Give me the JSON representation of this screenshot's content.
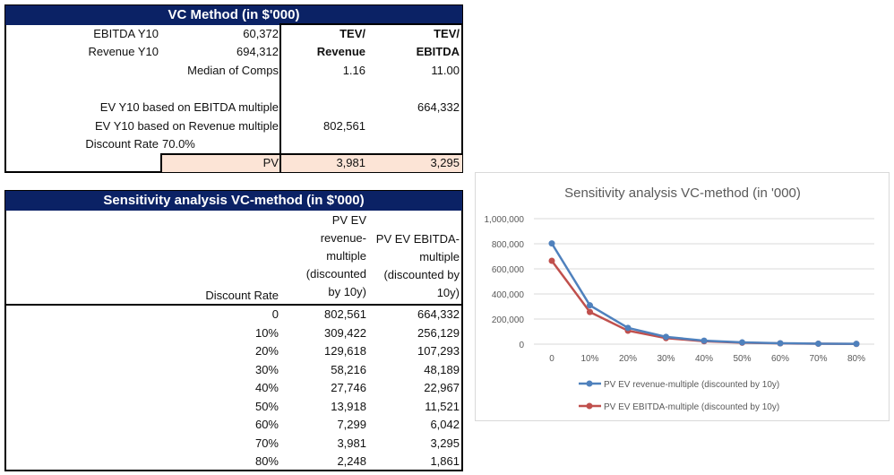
{
  "vc": {
    "title": "VC Method (in $'000)",
    "ebitda_label": "EBITDA Y10",
    "ebitda_value": "60,372",
    "revenue_label": "Revenue Y10",
    "revenue_value": "694,312",
    "col1_line1": "TEV/",
    "col1_line2": "Revenue",
    "col2_line1": "TEV/",
    "col2_line2": "EBITDA",
    "median_label": "Median of Comps",
    "median_rev": "1.16",
    "median_ebitda": "11.00",
    "ev_ebitda_label": "EV Y10 based on EBITDA multiple",
    "ev_ebitda_value": "664,332",
    "ev_rev_label": "EV Y10 based on Revenue multiple",
    "ev_rev_value": "802,561",
    "discount_label": "Discount Rate",
    "discount_value": "70.0%",
    "pv_label": "PV",
    "pv_rev": "3,981",
    "pv_ebitda": "3,295"
  },
  "sens": {
    "title": "Sensitivity analysis VC-method (in $'000)",
    "col0_header": "Discount Rate",
    "col1_header": [
      "PV EV",
      "revenue-",
      "multiple",
      "(discounted",
      "by 10y)"
    ],
    "col2_header": [
      "PV EV EBITDA-",
      "multiple",
      "(discounted by",
      "10y)"
    ],
    "rows": [
      [
        "0",
        "802,561",
        "664,332"
      ],
      [
        "10%",
        "309,422",
        "256,129"
      ],
      [
        "20%",
        "129,618",
        "107,293"
      ],
      [
        "30%",
        "58,216",
        "48,189"
      ],
      [
        "40%",
        "27,746",
        "22,967"
      ],
      [
        "50%",
        "13,918",
        "11,521"
      ],
      [
        "60%",
        "7,299",
        "6,042"
      ],
      [
        "70%",
        "3,981",
        "3,295"
      ],
      [
        "80%",
        "2,248",
        "1,861"
      ]
    ]
  },
  "colors": {
    "header_bg": "#0b2265",
    "pv_fill": "#fce4d6",
    "series1": "#4f81bd",
    "series2": "#c0504d"
  },
  "chart_data": {
    "type": "line",
    "title": "Sensitivity analysis VC-method (in '000)",
    "categories": [
      "0",
      "10%",
      "20%",
      "30%",
      "40%",
      "50%",
      "60%",
      "70%",
      "80%"
    ],
    "yticks": [
      "0",
      "200,000",
      "400,000",
      "600,000",
      "800,000",
      "1,000,000"
    ],
    "ylim": [
      0,
      1000000
    ],
    "grid": true,
    "legend": "bottom",
    "series": [
      {
        "name": "PV EV revenue-multiple  (discounted by 10y)",
        "values": [
          802561,
          309422,
          129618,
          58216,
          27746,
          13918,
          7299,
          3981,
          2248
        ]
      },
      {
        "name": "PV EV EBITDA-multiple (discounted by 10y)",
        "values": [
          664332,
          256129,
          107293,
          48189,
          22967,
          11521,
          6042,
          3295,
          1861
        ]
      }
    ]
  }
}
